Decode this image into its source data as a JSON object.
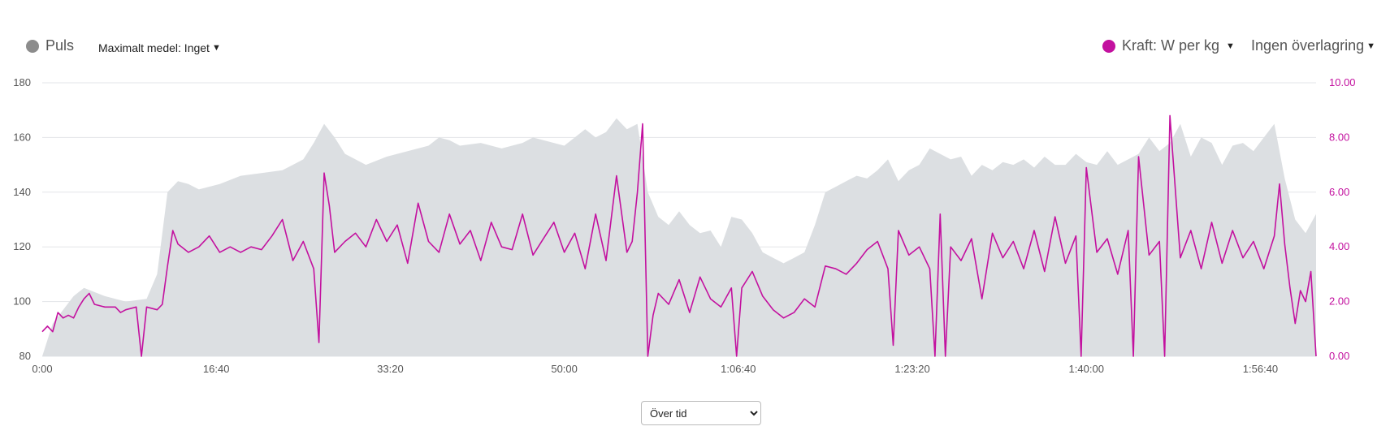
{
  "toolbar": {
    "hr_legend": "Puls",
    "max_avg_label": "Maximalt medel: Inget",
    "power_legend": "Kraft: W per kg",
    "overlay_label": "Ingen överlagring",
    "hr_color": "#8c8c8c",
    "power_color": "#c3119f"
  },
  "x_select": {
    "selected": "Över tid",
    "options": [
      "Över tid"
    ]
  },
  "chart_data": {
    "type": "area",
    "x_unit": "elapsed time (h:mm:ss)",
    "x_range": [
      "0:00",
      "2:02:00"
    ],
    "x_ticks": [
      "0:00",
      "16:40",
      "33:20",
      "50:00",
      "1:06:40",
      "1:23:20",
      "1:40:00",
      "1:56:40"
    ],
    "y_left": {
      "range": [
        80,
        180
      ],
      "ticks": [
        "80",
        "100",
        "120",
        "140",
        "160",
        "180"
      ]
    },
    "y_right": {
      "range": [
        0,
        10
      ],
      "ticks": [
        "0.00",
        "2.00",
        "4.00",
        "6.00",
        "8.00",
        "10.00"
      ]
    },
    "grid": true,
    "series": [
      {
        "name": "Puls",
        "type": "area",
        "axis": "left",
        "color": "#dcdfe2",
        "points": [
          [
            "0:00",
            80
          ],
          [
            "1:00",
            92
          ],
          [
            "3:00",
            102
          ],
          [
            "4:00",
            105
          ],
          [
            "6:00",
            102
          ],
          [
            "8:00",
            100
          ],
          [
            "10:00",
            101
          ],
          [
            "11:00",
            110
          ],
          [
            "12:00",
            140
          ],
          [
            "13:00",
            144
          ],
          [
            "14:00",
            143
          ],
          [
            "15:00",
            141
          ],
          [
            "17:00",
            143
          ],
          [
            "19:00",
            146
          ],
          [
            "21:00",
            147
          ],
          [
            "23:00",
            148
          ],
          [
            "24:00",
            150
          ],
          [
            "25:00",
            152
          ],
          [
            "26:00",
            158
          ],
          [
            "27:00",
            165
          ],
          [
            "28:00",
            160
          ],
          [
            "29:00",
            154
          ],
          [
            "30:00",
            152
          ],
          [
            "31:00",
            150
          ],
          [
            "33:00",
            153
          ],
          [
            "35:00",
            155
          ],
          [
            "37:00",
            157
          ],
          [
            "38:00",
            160
          ],
          [
            "39:00",
            159
          ],
          [
            "40:00",
            157
          ],
          [
            "42:00",
            158
          ],
          [
            "44:00",
            156
          ],
          [
            "46:00",
            158
          ],
          [
            "47:00",
            160
          ],
          [
            "48:00",
            159
          ],
          [
            "50:00",
            157
          ],
          [
            "51:00",
            160
          ],
          [
            "52:00",
            163
          ],
          [
            "53:00",
            160
          ],
          [
            "54:00",
            162
          ],
          [
            "55:00",
            167
          ],
          [
            "56:00",
            163
          ],
          [
            "57:00",
            165
          ],
          [
            "58:00",
            140
          ],
          [
            "59:00",
            131
          ],
          [
            "1:00:00",
            128
          ],
          [
            "1:01:00",
            133
          ],
          [
            "1:02:00",
            128
          ],
          [
            "1:03:00",
            125
          ],
          [
            "1:04:00",
            126
          ],
          [
            "1:05:00",
            120
          ],
          [
            "1:06:00",
            131
          ],
          [
            "1:07:00",
            130
          ],
          [
            "1:08:00",
            125
          ],
          [
            "1:09:00",
            118
          ],
          [
            "1:10:00",
            116
          ],
          [
            "1:11:00",
            114
          ],
          [
            "1:12:00",
            116
          ],
          [
            "1:13:00",
            118
          ],
          [
            "1:14:00",
            128
          ],
          [
            "1:15:00",
            140
          ],
          [
            "1:16:00",
            142
          ],
          [
            "1:17:00",
            144
          ],
          [
            "1:18:00",
            146
          ],
          [
            "1:19:00",
            145
          ],
          [
            "1:20:00",
            148
          ],
          [
            "1:21:00",
            152
          ],
          [
            "1:22:00",
            144
          ],
          [
            "1:23:00",
            148
          ],
          [
            "1:24:00",
            150
          ],
          [
            "1:25:00",
            156
          ],
          [
            "1:26:00",
            154
          ],
          [
            "1:27:00",
            152
          ],
          [
            "1:28:00",
            153
          ],
          [
            "1:29:00",
            146
          ],
          [
            "1:30:00",
            150
          ],
          [
            "1:31:00",
            148
          ],
          [
            "1:32:00",
            151
          ],
          [
            "1:33:00",
            150
          ],
          [
            "1:34:00",
            152
          ],
          [
            "1:35:00",
            149
          ],
          [
            "1:36:00",
            153
          ],
          [
            "1:37:00",
            150
          ],
          [
            "1:38:00",
            150
          ],
          [
            "1:39:00",
            154
          ],
          [
            "1:40:00",
            151
          ],
          [
            "1:41:00",
            150
          ],
          [
            "1:42:00",
            155
          ],
          [
            "1:43:00",
            150
          ],
          [
            "1:44:00",
            152
          ],
          [
            "1:45:00",
            154
          ],
          [
            "1:46:00",
            160
          ],
          [
            "1:47:00",
            155
          ],
          [
            "1:48:00",
            158
          ],
          [
            "1:49:00",
            165
          ],
          [
            "1:50:00",
            153
          ],
          [
            "1:51:00",
            160
          ],
          [
            "1:52:00",
            158
          ],
          [
            "1:53:00",
            150
          ],
          [
            "1:54:00",
            157
          ],
          [
            "1:55:00",
            158
          ],
          [
            "1:56:00",
            155
          ],
          [
            "1:57:00",
            160
          ],
          [
            "1:58:00",
            165
          ],
          [
            "1:59:00",
            145
          ],
          [
            "2:00:00",
            130
          ],
          [
            "2:01:00",
            125
          ],
          [
            "2:02:00",
            132
          ]
        ]
      },
      {
        "name": "Kraft: W per kg",
        "type": "line",
        "axis": "right",
        "color": "#c3119f",
        "points": [
          [
            "0:00",
            0.9
          ],
          [
            "0:30",
            1.1
          ],
          [
            "1:00",
            0.9
          ],
          [
            "1:30",
            1.6
          ],
          [
            "2:00",
            1.4
          ],
          [
            "2:30",
            1.5
          ],
          [
            "3:00",
            1.4
          ],
          [
            "3:30",
            1.8
          ],
          [
            "4:00",
            2.1
          ],
          [
            "4:30",
            2.3
          ],
          [
            "5:00",
            1.9
          ],
          [
            "6:00",
            1.8
          ],
          [
            "7:00",
            1.8
          ],
          [
            "7:30",
            1.6
          ],
          [
            "8:00",
            1.7
          ],
          [
            "9:00",
            1.8
          ],
          [
            "9:30",
            0.0
          ],
          [
            "10:00",
            1.8
          ],
          [
            "11:00",
            1.7
          ],
          [
            "11:30",
            1.9
          ],
          [
            "12:00",
            3.3
          ],
          [
            "12:30",
            4.6
          ],
          [
            "13:00",
            4.1
          ],
          [
            "14:00",
            3.8
          ],
          [
            "15:00",
            4.0
          ],
          [
            "16:00",
            4.4
          ],
          [
            "17:00",
            3.8
          ],
          [
            "18:00",
            4.0
          ],
          [
            "19:00",
            3.8
          ],
          [
            "20:00",
            4.0
          ],
          [
            "21:00",
            3.9
          ],
          [
            "22:00",
            4.4
          ],
          [
            "23:00",
            5.0
          ],
          [
            "24:00",
            3.5
          ],
          [
            "25:00",
            4.2
          ],
          [
            "26:00",
            3.2
          ],
          [
            "26:30",
            0.5
          ],
          [
            "27:00",
            6.7
          ],
          [
            "27:30",
            5.5
          ],
          [
            "28:00",
            3.8
          ],
          [
            "29:00",
            4.2
          ],
          [
            "30:00",
            4.5
          ],
          [
            "31:00",
            4.0
          ],
          [
            "32:00",
            5.0
          ],
          [
            "33:00",
            4.2
          ],
          [
            "34:00",
            4.8
          ],
          [
            "35:00",
            3.4
          ],
          [
            "36:00",
            5.6
          ],
          [
            "37:00",
            4.2
          ],
          [
            "38:00",
            3.8
          ],
          [
            "39:00",
            5.2
          ],
          [
            "40:00",
            4.1
          ],
          [
            "41:00",
            4.6
          ],
          [
            "42:00",
            3.5
          ],
          [
            "43:00",
            4.9
          ],
          [
            "44:00",
            4.0
          ],
          [
            "45:00",
            3.9
          ],
          [
            "46:00",
            5.2
          ],
          [
            "47:00",
            3.7
          ],
          [
            "48:00",
            4.3
          ],
          [
            "49:00",
            4.9
          ],
          [
            "50:00",
            3.8
          ],
          [
            "51:00",
            4.5
          ],
          [
            "52:00",
            3.2
          ],
          [
            "53:00",
            5.2
          ],
          [
            "54:00",
            3.5
          ],
          [
            "55:00",
            6.6
          ],
          [
            "56:00",
            3.8
          ],
          [
            "56:30",
            4.2
          ],
          [
            "57:00",
            6.0
          ],
          [
            "57:30",
            8.5
          ],
          [
            "58:00",
            0.0
          ],
          [
            "58:30",
            1.5
          ],
          [
            "59:00",
            2.3
          ],
          [
            "1:00:00",
            1.9
          ],
          [
            "1:01:00",
            2.8
          ],
          [
            "1:02:00",
            1.6
          ],
          [
            "1:03:00",
            2.9
          ],
          [
            "1:04:00",
            2.1
          ],
          [
            "1:05:00",
            1.8
          ],
          [
            "1:06:00",
            2.5
          ],
          [
            "1:06:30",
            0.0
          ],
          [
            "1:07:00",
            2.5
          ],
          [
            "1:08:00",
            3.1
          ],
          [
            "1:09:00",
            2.2
          ],
          [
            "1:10:00",
            1.7
          ],
          [
            "1:11:00",
            1.4
          ],
          [
            "1:12:00",
            1.6
          ],
          [
            "1:13:00",
            2.1
          ],
          [
            "1:14:00",
            1.8
          ],
          [
            "1:15:00",
            3.3
          ],
          [
            "1:16:00",
            3.2
          ],
          [
            "1:17:00",
            3.0
          ],
          [
            "1:18:00",
            3.4
          ],
          [
            "1:19:00",
            3.9
          ],
          [
            "1:20:00",
            4.2
          ],
          [
            "1:21:00",
            3.2
          ],
          [
            "1:21:30",
            0.4
          ],
          [
            "1:22:00",
            4.6
          ],
          [
            "1:23:00",
            3.7
          ],
          [
            "1:24:00",
            4.0
          ],
          [
            "1:25:00",
            3.2
          ],
          [
            "1:25:30",
            0.0
          ],
          [
            "1:26:00",
            5.2
          ],
          [
            "1:26:30",
            0.0
          ],
          [
            "1:27:00",
            4.0
          ],
          [
            "1:28:00",
            3.5
          ],
          [
            "1:29:00",
            4.3
          ],
          [
            "1:30:00",
            2.1
          ],
          [
            "1:31:00",
            4.5
          ],
          [
            "1:32:00",
            3.6
          ],
          [
            "1:33:00",
            4.2
          ],
          [
            "1:34:00",
            3.2
          ],
          [
            "1:35:00",
            4.6
          ],
          [
            "1:36:00",
            3.1
          ],
          [
            "1:37:00",
            5.1
          ],
          [
            "1:38:00",
            3.4
          ],
          [
            "1:39:00",
            4.4
          ],
          [
            "1:39:30",
            0.0
          ],
          [
            "1:40:00",
            6.9
          ],
          [
            "1:41:00",
            3.8
          ],
          [
            "1:42:00",
            4.3
          ],
          [
            "1:43:00",
            3.0
          ],
          [
            "1:44:00",
            4.6
          ],
          [
            "1:44:30",
            0.0
          ],
          [
            "1:45:00",
            7.3
          ],
          [
            "1:46:00",
            3.7
          ],
          [
            "1:47:00",
            4.2
          ],
          [
            "1:47:30",
            0.0
          ],
          [
            "1:48:00",
            8.8
          ],
          [
            "1:49:00",
            3.6
          ],
          [
            "1:50:00",
            4.6
          ],
          [
            "1:51:00",
            3.2
          ],
          [
            "1:52:00",
            4.9
          ],
          [
            "1:53:00",
            3.4
          ],
          [
            "1:54:00",
            4.6
          ],
          [
            "1:55:00",
            3.6
          ],
          [
            "1:56:00",
            4.2
          ],
          [
            "1:57:00",
            3.2
          ],
          [
            "1:58:00",
            4.4
          ],
          [
            "1:58:30",
            6.3
          ],
          [
            "1:59:00",
            4.1
          ],
          [
            "1:59:30",
            2.5
          ],
          [
            "2:00:00",
            1.2
          ],
          [
            "2:00:30",
            2.4
          ],
          [
            "2:01:00",
            2.0
          ],
          [
            "2:01:30",
            3.1
          ],
          [
            "2:02:00",
            0.0
          ]
        ]
      }
    ]
  }
}
